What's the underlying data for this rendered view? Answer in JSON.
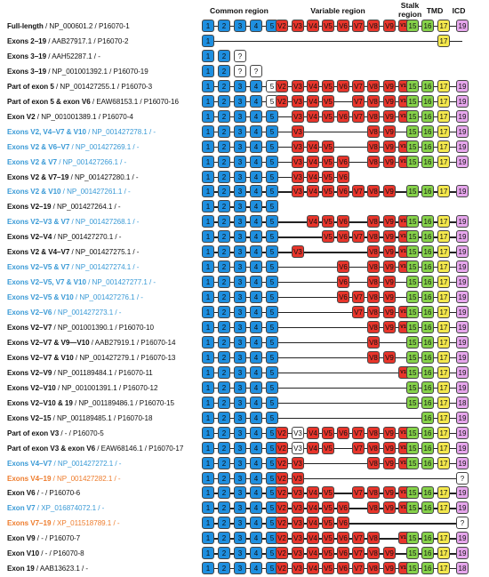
{
  "headers": {
    "common": "Common region",
    "variable": "Variable region",
    "stalk1": "Stalk",
    "stalk2": "region",
    "tmd": "TMD",
    "icd": "ICD"
  },
  "colors": {
    "common": "#1e8fe0",
    "variable": "#e8352b",
    "stalk": "#86d24a",
    "tmd": "#f4e84d",
    "icd": "#e6a6ec",
    "unknown": "#ffffff",
    "text_black": "#111111",
    "text_blue": "#3a9ad6",
    "text_orange": "#ee7d2e"
  },
  "exon_labels": {
    "1": "1",
    "2": "2",
    "3": "3",
    "4": "4",
    "5": "5",
    "V2": "V2",
    "V3": "V3",
    "V4": "V4",
    "V5": "V5",
    "V6": "V6",
    "V7": "V7",
    "V8": "V8",
    "V9": "V9",
    "V10": "V10",
    "15": "15",
    "16": "16",
    "17": "17",
    "18": "18",
    "19": "19",
    "unknown": "?"
  },
  "rows": [
    {
      "name": "Full-length",
      "id": " / NP_000601.2 / P16070-1",
      "color": "black",
      "line": [
        "1",
        "19"
      ],
      "exons": [
        "1",
        "2",
        "3",
        "4",
        "5",
        "V2",
        "V3",
        "V4",
        "V5",
        "V6",
        "V7",
        "V8",
        "V9",
        "V10",
        "15",
        "16",
        "17",
        "19"
      ]
    },
    {
      "name": "Exons 2–19",
      "id": " / AAB27917.1 / P16070-2",
      "color": "black",
      "line": [
        "1",
        "19"
      ],
      "exons": [
        "1",
        "17"
      ]
    },
    {
      "name": "Exons 3–19",
      "id": " / AAH52287.1 / -",
      "color": "black",
      "line": null,
      "exons": [
        "1",
        "2",
        "?@3"
      ]
    },
    {
      "name": "Exons 3–19",
      "id": " / NP_001001392.1 / P16070-19",
      "color": "black",
      "line": null,
      "exons": [
        "1",
        "2",
        "?@3",
        "?@4"
      ]
    },
    {
      "name": "Part of exon 5",
      "id": " / NP_001427255.1 / P16070-3",
      "color": "black",
      "line": [
        "1",
        "19"
      ],
      "exons": [
        "1",
        "2",
        "3",
        "4",
        "5w",
        "V2",
        "V3",
        "V4",
        "V5",
        "V6",
        "V7",
        "V8",
        "V9",
        "V10",
        "15",
        "16",
        "17",
        "19"
      ]
    },
    {
      "name": "Part of exon 5 & exon V6",
      "id": " / EAW68153.1 / P16070-16",
      "color": "black",
      "line": [
        "1",
        "19"
      ],
      "exons": [
        "1",
        "2",
        "3",
        "4",
        "5w",
        "V2",
        "V3",
        "V4",
        "V5",
        "V7",
        "V8",
        "V9",
        "V10",
        "15",
        "16",
        "17",
        "19"
      ]
    },
    {
      "name": "Exon V2",
      "id": " / NP_001001389.1 / P16070-4",
      "color": "black",
      "line": [
        "1",
        "19"
      ],
      "exons": [
        "1",
        "2",
        "3",
        "4",
        "5",
        "V3",
        "V4",
        "V5",
        "V6",
        "V7",
        "V8",
        "V9",
        "V10",
        "15",
        "16",
        "17",
        "19"
      ]
    },
    {
      "name": "Exons V2, V4–V7 & V10",
      "id": " / NP_001427278.1 / -",
      "color": "blue",
      "line": [
        "1",
        "19"
      ],
      "exons": [
        "1",
        "2",
        "3",
        "4",
        "5",
        "V3",
        "V8",
        "V9",
        "15",
        "16",
        "17",
        "19"
      ]
    },
    {
      "name": "Exons V2 & V6–V7",
      "id": " / NP_001427269.1 / -",
      "color": "blue",
      "line": [
        "1",
        "19"
      ],
      "exons": [
        "1",
        "2",
        "3",
        "4",
        "5",
        "V3",
        "V4",
        "V5",
        "V8",
        "V9",
        "V10",
        "15",
        "16",
        "17",
        "19"
      ]
    },
    {
      "name": "Exons V2 & V7",
      "id": " / NP_001427266.1 / -",
      "color": "blue",
      "line": [
        "1",
        "19"
      ],
      "exons": [
        "1",
        "2",
        "3",
        "4",
        "5",
        "V3",
        "V4",
        "V5",
        "V6",
        "V8",
        "V9",
        "V10",
        "15",
        "16",
        "17",
        "19"
      ]
    },
    {
      "name": "Exons V2 & V7–19",
      "id": " / NP_001427280.1 / -",
      "color": "black",
      "line": [
        "1",
        "V6"
      ],
      "exons": [
        "1",
        "2",
        "3",
        "4",
        "5",
        "V3",
        "V4",
        "V5",
        "V6"
      ]
    },
    {
      "name": "Exons V2 & V10",
      "id": " / NP_001427261.1 / -",
      "color": "blue",
      "line": [
        "1",
        "19"
      ],
      "exons": [
        "1",
        "2",
        "3",
        "4",
        "5",
        "V3",
        "V4",
        "V5",
        "V6",
        "V7",
        "V8",
        "V9",
        "15",
        "16",
        "17",
        "19"
      ]
    },
    {
      "name": "Exons V2–19",
      "id": " / NP_001427264.1 / -",
      "color": "black",
      "line": [
        "1",
        "5"
      ],
      "exons": [
        "1",
        "2",
        "3",
        "4",
        "5"
      ]
    },
    {
      "name": "Exons V2–V3 & V7",
      "id": " / NP_001427268.1 / -",
      "color": "blue",
      "line": [
        "1",
        "19"
      ],
      "exons": [
        "1",
        "2",
        "3",
        "4",
        "5",
        "V4",
        "V5",
        "V6",
        "V8",
        "V9",
        "V10",
        "15",
        "16",
        "17",
        "19"
      ]
    },
    {
      "name": "Exons V2–V4",
      "id": " / NP_001427270.1 / -",
      "color": "black",
      "line": [
        "1",
        "19"
      ],
      "exons": [
        "1",
        "2",
        "3",
        "4",
        "5",
        "V5",
        "V6",
        "V7",
        "V8",
        "V9",
        "V10",
        "15",
        "16",
        "17",
        "19"
      ]
    },
    {
      "name": "Exons V2 & V4–V7",
      "id": " / NP_001427275.1 / -",
      "color": "black",
      "line": [
        "1",
        "19"
      ],
      "exons": [
        "1",
        "2",
        "3",
        "4",
        "5",
        "V3",
        "V8",
        "V9",
        "V10",
        "15",
        "16",
        "17",
        "19"
      ]
    },
    {
      "name": "Exons V2–V5 & V7",
      "id": " / NP_001427274.1 / -",
      "color": "blue",
      "line": [
        "1",
        "19"
      ],
      "exons": [
        "1",
        "2",
        "3",
        "4",
        "5",
        "V6",
        "V8",
        "V9",
        "V10",
        "15",
        "16",
        "17",
        "19"
      ]
    },
    {
      "name": "Exons V2–V5, V7 & V10",
      "id": " / NP_001427277.1 / -",
      "color": "blue",
      "line": [
        "1",
        "19"
      ],
      "exons": [
        "1",
        "2",
        "3",
        "4",
        "5",
        "V6",
        "V8",
        "V9",
        "15",
        "16",
        "17",
        "19"
      ]
    },
    {
      "name": "Exons V2–V5 & V10",
      "id": " / NP_001427276.1 / -",
      "color": "blue",
      "line": [
        "1",
        "19"
      ],
      "exons": [
        "1",
        "2",
        "3",
        "4",
        "5",
        "V6",
        "V7",
        "V8",
        "V9",
        "15",
        "16",
        "17",
        "19"
      ]
    },
    {
      "name": "Exons V2–V6",
      "id": " / NP_001427273.1 / -",
      "color": "blue",
      "line": [
        "1",
        "19"
      ],
      "exons": [
        "1",
        "2",
        "3",
        "4",
        "5",
        "V7",
        "V8",
        "V9",
        "V10",
        "15",
        "16",
        "17",
        "19"
      ]
    },
    {
      "name": "Exons V2–V7",
      "id": " / NP_001001390.1 / P16070-10",
      "color": "black",
      "line": [
        "1",
        "19"
      ],
      "exons": [
        "1",
        "2",
        "3",
        "4",
        "5",
        "V8",
        "V9",
        "V10",
        "15",
        "16",
        "17",
        "19"
      ]
    },
    {
      "name": "Exons V2–V7 & V9—V10",
      "id": " / AAB27919.1 / P16070-14",
      "color": "black",
      "line": [
        "1",
        "19"
      ],
      "exons": [
        "1",
        "2",
        "3",
        "4",
        "5",
        "V8",
        "15",
        "16",
        "17",
        "19"
      ]
    },
    {
      "name": "Exons V2–V7 & V10",
      "id": " / NP_001427279.1 / P16070-13",
      "color": "black",
      "line": [
        "1",
        "19"
      ],
      "exons": [
        "1",
        "2",
        "3",
        "4",
        "5",
        "V8",
        "V9",
        "15",
        "16",
        "17",
        "19"
      ]
    },
    {
      "name": "Exons V2–V9",
      "id": " / NP_001189484.1 / P16070-11",
      "color": "black",
      "line": [
        "1",
        "19"
      ],
      "exons": [
        "1",
        "2",
        "3",
        "4",
        "5",
        "V10",
        "15",
        "16",
        "17",
        "19"
      ]
    },
    {
      "name": "Exons V2–V10",
      "id": " / NP_001001391.1 / P16070-12",
      "color": "black",
      "line": [
        "1",
        "19"
      ],
      "exons": [
        "1",
        "2",
        "3",
        "4",
        "5",
        "15",
        "16",
        "17",
        "19"
      ]
    },
    {
      "name": "Exons V2–V10 & 19",
      "id": " / NP_001189486.1 / P16070-15",
      "color": "black",
      "line": [
        "1",
        "18"
      ],
      "exons": [
        "1",
        "2",
        "3",
        "4",
        "5",
        "15",
        "16",
        "17",
        "18@19"
      ]
    },
    {
      "name": "Exons V2–15",
      "id": " / NP_001189485.1 / P16070-18",
      "color": "black",
      "line": [
        "1",
        "19"
      ],
      "exons": [
        "1",
        "2",
        "3",
        "4",
        "5",
        "16",
        "17",
        "19"
      ]
    },
    {
      "name": "Part of exon V3",
      "id": " / - / P16070-5",
      "color": "black",
      "line": [
        "1",
        "19"
      ],
      "exons": [
        "1",
        "2",
        "3",
        "4",
        "5",
        "V2",
        "V3w",
        "V4",
        "V5",
        "V6",
        "V7",
        "V8",
        "V9",
        "V10",
        "15",
        "16",
        "17",
        "19"
      ]
    },
    {
      "name": "Part of exon V3 & exon V6",
      "id": " / EAW68146.1 / P16070-17",
      "color": "black",
      "line": [
        "1",
        "19"
      ],
      "exons": [
        "1",
        "2",
        "3",
        "4",
        "5",
        "V2",
        "V3w",
        "V4",
        "V5",
        "V7",
        "V8",
        "V9",
        "V10",
        "15",
        "16",
        "17",
        "19"
      ]
    },
    {
      "name": "Exons V4–V7",
      "id": " / NP_001427272.1 / -",
      "color": "blue",
      "line": [
        "1",
        "19"
      ],
      "exons": [
        "1",
        "2",
        "3",
        "4",
        "5",
        "V2",
        "V3",
        "V8",
        "V9",
        "V10",
        "15",
        "16",
        "17",
        "19"
      ]
    },
    {
      "name": "Exons V4–19",
      "id": " / NP_001427282.1 / -",
      "color": "orange",
      "line": [
        "1",
        "19"
      ],
      "exons": [
        "1",
        "2",
        "3",
        "4",
        "5",
        "V2",
        "V3",
        "?@19"
      ]
    },
    {
      "name": "Exon V6",
      "id": " / - / P16070-6",
      "color": "black",
      "line": [
        "1",
        "19"
      ],
      "exons": [
        "1",
        "2",
        "3",
        "4",
        "5",
        "V2",
        "V3",
        "V4",
        "V5",
        "V7",
        "V8",
        "V9",
        "V10",
        "15",
        "16",
        "17",
        "19"
      ]
    },
    {
      "name": "Exon V7",
      "id": " / XP_016874072.1 / -",
      "color": "blue",
      "line": [
        "1",
        "19"
      ],
      "exons": [
        "1",
        "2",
        "3",
        "4",
        "5",
        "V2",
        "V3",
        "V4",
        "V5",
        "V6",
        "V8",
        "V9",
        "V10",
        "15",
        "16",
        "17",
        "19"
      ]
    },
    {
      "name": "Exons V7–19",
      "id": " / XP_011518789.1 / -",
      "color": "orange",
      "line": [
        "1",
        "19"
      ],
      "exons": [
        "1",
        "2",
        "3",
        "4",
        "5",
        "V2",
        "V3",
        "V4",
        "V5",
        "V6",
        "?@19"
      ]
    },
    {
      "name": "Exon V9",
      "id": " / - / P16070-7",
      "color": "black",
      "line": [
        "1",
        "19"
      ],
      "exons": [
        "1",
        "2",
        "3",
        "4",
        "5",
        "V2",
        "V3",
        "V4",
        "V5",
        "V6",
        "V7",
        "V8",
        "V10",
        "15",
        "16",
        "17",
        "19"
      ]
    },
    {
      "name": "Exon V10",
      "id": " / - / P16070-8",
      "color": "black",
      "line": [
        "1",
        "19"
      ],
      "exons": [
        "1",
        "2",
        "3",
        "4",
        "5",
        "V2",
        "V3",
        "V4",
        "V5",
        "V6",
        "V7",
        "V8",
        "V9",
        "15",
        "16",
        "17",
        "19"
      ]
    },
    {
      "name": "Exon 19",
      "id": " / AAB13623.1 / -",
      "color": "black",
      "line": [
        "1",
        "18@19"
      ],
      "exons": [
        "1",
        "2",
        "3",
        "4",
        "5",
        "V2",
        "V3",
        "V4",
        "V5",
        "V6",
        "V7",
        "V8",
        "V9",
        "V10",
        "15",
        "16",
        "17",
        "18@19"
      ]
    }
  ]
}
